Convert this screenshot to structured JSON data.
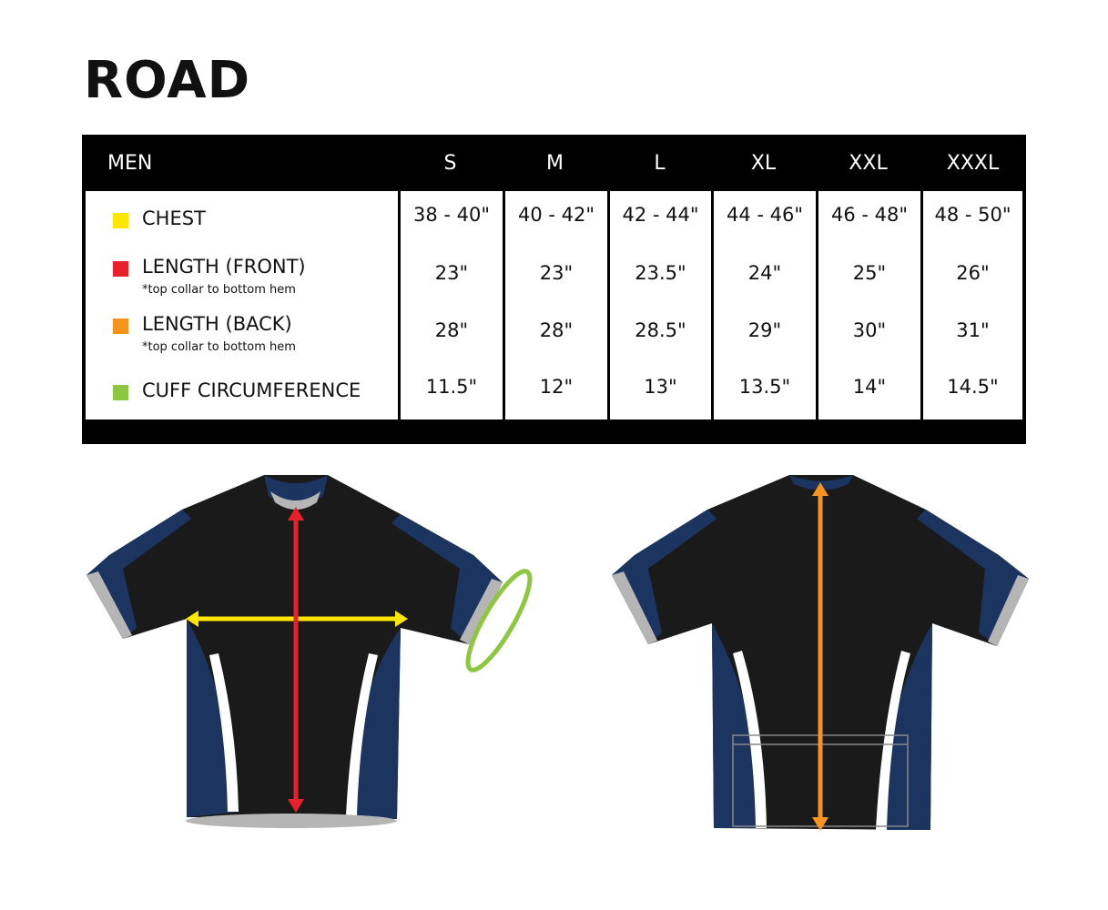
{
  "title": "ROAD",
  "table": {
    "header": "MEN",
    "sizes": [
      "S",
      "M",
      "L",
      "XL",
      "XXL",
      "XXXL"
    ],
    "rows": [
      {
        "label": "CHEST",
        "note": "",
        "color": "#ffe600",
        "values": [
          "38 - 40\"",
          "40 - 42\"",
          "42 - 44\"",
          "44 - 46\"",
          "46 - 48\"",
          "48 - 50\""
        ]
      },
      {
        "label": "LENGTH (FRONT)",
        "note": "*top collar to bottom hem",
        "color": "#e8202a",
        "values": [
          "23\"",
          "23\"",
          "23.5\"",
          "24\"",
          "25\"",
          "26\""
        ]
      },
      {
        "label": "LENGTH (BACK)",
        "note": "*top collar to bottom hem",
        "color": "#f7941d",
        "values": [
          "28\"",
          "28\"",
          "28.5\"",
          "29\"",
          "30\"",
          "31\""
        ]
      },
      {
        "label": "CUFF CIRCUMFERENCE",
        "note": "",
        "color": "#8dc63f",
        "values": [
          "11.5\"",
          "12\"",
          "13\"",
          "13.5\"",
          "14\"",
          "14.5\""
        ]
      }
    ]
  },
  "colors": {
    "jersey_black": "#1a1a1a",
    "jersey_navy": "#1c3460",
    "cuff_gray": "#b5b5b5"
  }
}
